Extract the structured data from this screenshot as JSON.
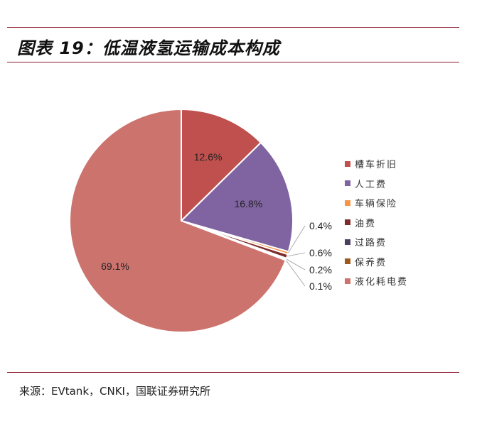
{
  "header": {
    "title": "图表 19：低温液氢运输成本构成"
  },
  "footer": {
    "source": "来源：EVtank，CNKI，国联证券研究所"
  },
  "chart_data": {
    "type": "pie",
    "categories": [
      "槽车折旧",
      "人工费",
      "车辆保险",
      "油费",
      "过路费",
      "保养费",
      "液化耗电费"
    ],
    "values": [
      12.6,
      16.8,
      0.4,
      0.6,
      0.2,
      0.1,
      69.1
    ],
    "data_labels": [
      "12.6%",
      "16.8%",
      "0.4%",
      "0.6%",
      "0.2%",
      "0.1%",
      "69.1%"
    ],
    "colors": [
      "#c0504d",
      "#8064a2",
      "#f79646",
      "#7f2b2b",
      "#4a3f5c",
      "#9c5a1c",
      "#cd736e"
    ],
    "legend_position": "right",
    "start_angle_deg": 0,
    "direction": "clockwise"
  }
}
